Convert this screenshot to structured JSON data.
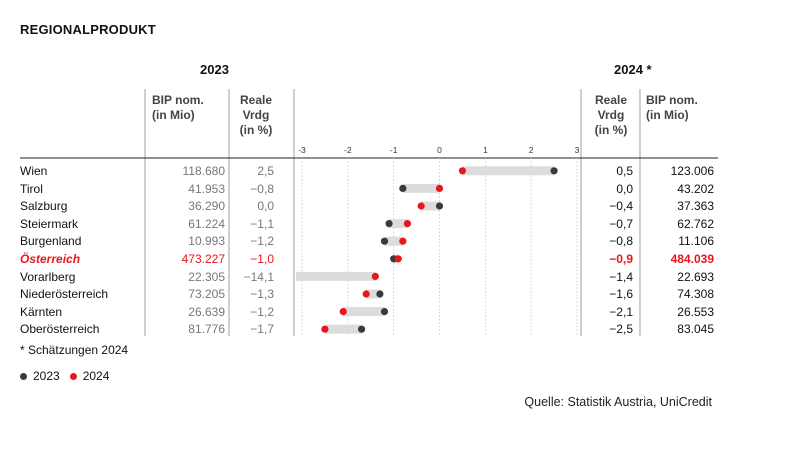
{
  "title": "REGIONALPRODUKT",
  "year_left": "2023",
  "year_right": "2024 *",
  "headers": {
    "bip_left": [
      "BIP nom.",
      "(in Mio)"
    ],
    "vrdg_left": [
      "Reale",
      "Vrdg",
      "(in %)"
    ],
    "vrdg_right": [
      "Reale",
      "Vrdg",
      "(in %)"
    ],
    "bip_right": [
      "BIP nom.",
      "(in Mio)"
    ]
  },
  "rows": [
    {
      "region": "Wien",
      "bip_2023": "118.680",
      "vrdg_2023": "2,5",
      "vrdg_2024": "0,5",
      "bip_2024": "123.006",
      "highlight": false
    },
    {
      "region": "Tirol",
      "bip_2023": "41.953",
      "vrdg_2023": "−0,8",
      "vrdg_2024": "0,0",
      "bip_2024": "43.202",
      "highlight": false
    },
    {
      "region": "Salzburg",
      "bip_2023": "36.290",
      "vrdg_2023": "0,0",
      "vrdg_2024": "−0,4",
      "bip_2024": "37.363",
      "highlight": false
    },
    {
      "region": "Steiermark",
      "bip_2023": "61.224",
      "vrdg_2023": "−1,1",
      "vrdg_2024": "−0,7",
      "bip_2024": "62.762",
      "highlight": false
    },
    {
      "region": "Burgenland",
      "bip_2023": "10.993",
      "vrdg_2023": "−1,2",
      "vrdg_2024": "−0,8",
      "bip_2024": "11.106",
      "highlight": false
    },
    {
      "region": "Österreich",
      "bip_2023": "473.227",
      "vrdg_2023": "−1,0",
      "vrdg_2024": "−0,9",
      "bip_2024": "484.039",
      "highlight": true
    },
    {
      "region": "Vorarlberg",
      "bip_2023": "22.305",
      "vrdg_2023": "−14,1",
      "vrdg_2024": "−1,4",
      "bip_2024": "22.693",
      "highlight": false
    },
    {
      "region": "Niederösterreich",
      "bip_2023": "73.205",
      "vrdg_2023": "−1,3",
      "vrdg_2024": "−1,6",
      "bip_2024": "74.308",
      "highlight": false
    },
    {
      "region": "Kärnten",
      "bip_2023": "26.639",
      "vrdg_2023": "−1,2",
      "vrdg_2024": "−2,1",
      "bip_2024": "26.553",
      "highlight": false
    },
    {
      "region": "Oberösterreich",
      "bip_2023": "81.776",
      "vrdg_2023": "−1,7",
      "vrdg_2024": "−2,5",
      "bip_2024": "83.045",
      "highlight": false
    }
  ],
  "chart_data": {
    "type": "scatter",
    "subtype": "dumbbell",
    "categories": [
      "Wien",
      "Tirol",
      "Salzburg",
      "Steiermark",
      "Burgenland",
      "Österreich",
      "Vorarlberg",
      "Niederösterreich",
      "Kärnten",
      "Oberösterreich"
    ],
    "series": [
      {
        "name": "2023",
        "color": "#3a3a3a",
        "values": [
          2.5,
          -0.8,
          0.0,
          -1.1,
          -1.2,
          -1.0,
          -14.1,
          -1.3,
          -1.2,
          -1.7
        ]
      },
      {
        "name": "2024",
        "color": "#e8161c",
        "values": [
          0.5,
          0.0,
          -0.4,
          -0.7,
          -0.8,
          -0.9,
          -1.4,
          -1.6,
          -2.1,
          -2.5
        ]
      }
    ],
    "xlim": [
      -3,
      3
    ],
    "ticks": [
      -3,
      -2,
      -1,
      0,
      1,
      2,
      3
    ],
    "tick_labels": [
      "-3",
      "-2",
      "-1",
      "0",
      "1",
      "2",
      "3"
    ],
    "bar_color": "#dcdcdc",
    "grid": true,
    "legend_position": "bottom-left"
  },
  "footnote": "* Schätzungen 2024",
  "legend": {
    "label_2023": "2023",
    "label_2024": "2024"
  },
  "source": "Quelle: Statistik Austria, UniCredit"
}
